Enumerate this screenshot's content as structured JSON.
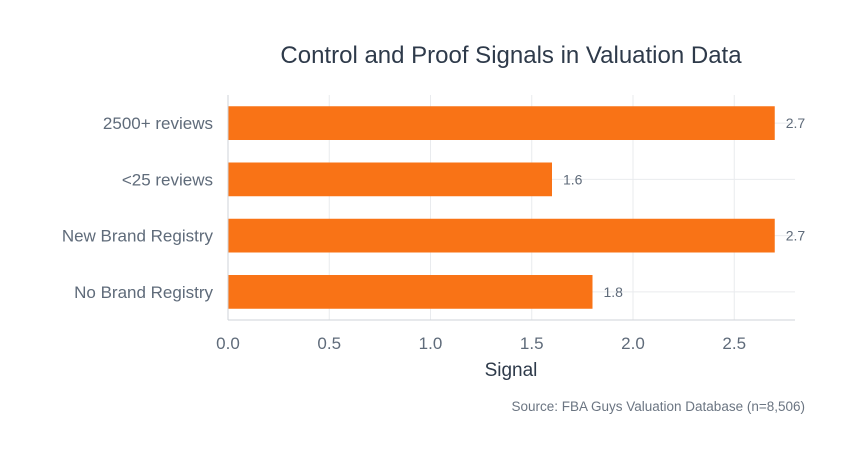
{
  "chart_data": {
    "type": "bar",
    "orientation": "horizontal",
    "title": "Control and Proof Signals in Valuation Data",
    "categories": [
      "2500+ reviews",
      "<25 reviews",
      "New Brand Registry",
      "No Brand Registry"
    ],
    "values": [
      2.7,
      1.6,
      2.7,
      1.8
    ],
    "data_labels": [
      "2.7",
      "1.6",
      "2.7",
      "1.8"
    ],
    "xlabel": "Signal",
    "ylabel": "",
    "xlim": [
      0,
      2.8
    ],
    "xticks": [
      0.0,
      0.5,
      1.0,
      1.5,
      2.0,
      2.5
    ],
    "xtick_labels": [
      "0.0",
      "0.5",
      "1.0",
      "1.5",
      "2.0",
      "2.5"
    ],
    "grid": true,
    "bar_color": "#f97316",
    "source": "Source: FBA Guys Valuation Database (n=8,506)"
  }
}
